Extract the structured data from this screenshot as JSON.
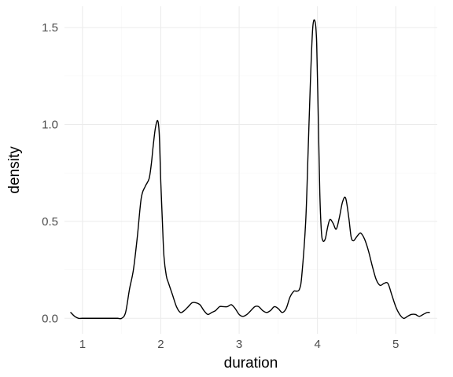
{
  "chart_data": {
    "type": "line",
    "title": "",
    "xlabel": "duration",
    "ylabel": "density",
    "xlim": [
      0.77,
      5.53
    ],
    "ylim": [
      -0.08,
      1.61
    ],
    "x_ticks": [
      1,
      2,
      3,
      4,
      5
    ],
    "y_ticks": [
      0.0,
      0.5,
      1.0,
      1.5
    ],
    "x_tick_labels": [
      "1",
      "2",
      "3",
      "4",
      "5"
    ],
    "y_tick_labels": [
      "0.0",
      "0.5",
      "1.0",
      "1.5"
    ],
    "grid": true,
    "legend": "none",
    "line_color": "#000000",
    "series": [
      {
        "x": [
          0.85,
          0.9,
          0.95,
          1.0,
          1.1,
          1.2,
          1.3,
          1.4,
          1.45,
          1.5,
          1.55,
          1.6,
          1.65,
          1.7,
          1.75,
          1.8,
          1.85,
          1.88,
          1.9,
          1.93,
          1.96,
          1.98,
          2.0,
          2.02,
          2.04,
          2.07,
          2.1,
          2.15,
          2.2,
          2.25,
          2.3,
          2.35,
          2.4,
          2.45,
          2.5,
          2.55,
          2.6,
          2.65,
          2.7,
          2.75,
          2.8,
          2.85,
          2.9,
          2.95,
          3.0,
          3.05,
          3.1,
          3.15,
          3.2,
          3.25,
          3.3,
          3.35,
          3.4,
          3.45,
          3.5,
          3.55,
          3.6,
          3.65,
          3.7,
          3.73,
          3.77,
          3.8,
          3.85,
          3.88,
          3.91,
          3.94,
          3.97,
          3.99,
          4.01,
          4.03,
          4.05,
          4.07,
          4.1,
          4.13,
          4.16,
          4.2,
          4.24,
          4.28,
          4.32,
          4.36,
          4.4,
          4.43,
          4.46,
          4.5,
          4.55,
          4.6,
          4.65,
          4.7,
          4.75,
          4.8,
          4.85,
          4.9,
          4.95,
          5.0,
          5.05,
          5.1,
          5.15,
          5.2,
          5.25,
          5.3,
          5.35,
          5.4,
          5.43
        ],
        "y": [
          0.03,
          0.01,
          0.0,
          0.0,
          0.0,
          0.0,
          0.0,
          0.0,
          0.0,
          0.0,
          0.03,
          0.15,
          0.25,
          0.42,
          0.62,
          0.68,
          0.72,
          0.8,
          0.88,
          0.98,
          1.02,
          0.95,
          0.7,
          0.5,
          0.32,
          0.22,
          0.18,
          0.12,
          0.06,
          0.03,
          0.04,
          0.06,
          0.08,
          0.08,
          0.07,
          0.04,
          0.02,
          0.03,
          0.04,
          0.06,
          0.06,
          0.06,
          0.07,
          0.05,
          0.02,
          0.01,
          0.02,
          0.04,
          0.06,
          0.06,
          0.04,
          0.03,
          0.04,
          0.06,
          0.05,
          0.03,
          0.05,
          0.11,
          0.14,
          0.14,
          0.15,
          0.22,
          0.5,
          0.85,
          1.22,
          1.5,
          1.53,
          1.42,
          1.05,
          0.65,
          0.45,
          0.4,
          0.41,
          0.47,
          0.51,
          0.49,
          0.46,
          0.52,
          0.6,
          0.62,
          0.52,
          0.42,
          0.4,
          0.42,
          0.44,
          0.41,
          0.35,
          0.27,
          0.2,
          0.17,
          0.18,
          0.18,
          0.12,
          0.06,
          0.02,
          0.0,
          0.01,
          0.02,
          0.02,
          0.01,
          0.02,
          0.03,
          0.03
        ]
      }
    ]
  }
}
